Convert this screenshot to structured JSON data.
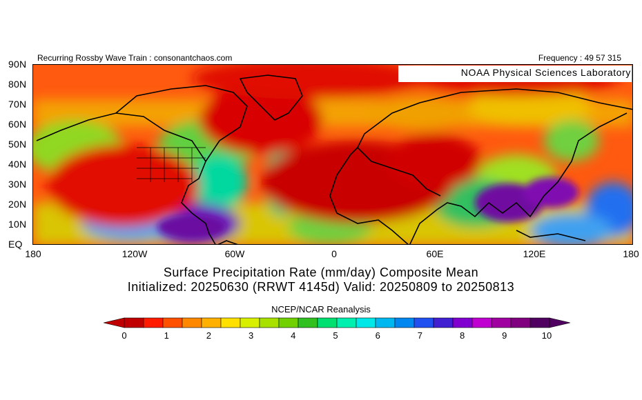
{
  "header": {
    "left": "Recurring Rossby Wave Train : consonantchaos.com",
    "right": "Frequency : 49 57 315",
    "lab": "NOAA Physical Sciences Laboratory"
  },
  "map": {
    "lat_labels": [
      "90N",
      "80N",
      "70N",
      "60N",
      "50N",
      "40N",
      "30N",
      "20N",
      "10N",
      "EQ"
    ],
    "lon_labels": [
      "180",
      "120W",
      "60W",
      "0",
      "60E",
      "120E",
      "180"
    ],
    "lat_range": [
      0,
      90
    ],
    "lon_range": [
      -180,
      180
    ]
  },
  "titles": {
    "line1": "Surface Precipitation Rate (mm/day) Composite Mean",
    "line2": "Initialized: 20250630 (RRWT 4145d) Valid: 20250809 to 20250813",
    "source": "NCEP/NCAR Reanalysis"
  },
  "colorbar": {
    "labels": [
      "0",
      "1",
      "2",
      "3",
      "4",
      "5",
      "6",
      "7",
      "8",
      "9",
      "10"
    ],
    "colors": [
      "#c00000",
      "#ff1a00",
      "#ff5000",
      "#ff8800",
      "#ffb000",
      "#ffe000",
      "#d8f000",
      "#a8e000",
      "#70d000",
      "#30c020",
      "#00e070",
      "#00f0b0",
      "#00e8e8",
      "#00b8f0",
      "#0088f0",
      "#2050f0",
      "#4020d0",
      "#8000d0",
      "#c000d0",
      "#a000a0",
      "#800080",
      "#500060"
    ]
  },
  "colors": {
    "dry": "#e00000",
    "very_dry": "#c80000",
    "wet": "#6010a0"
  }
}
